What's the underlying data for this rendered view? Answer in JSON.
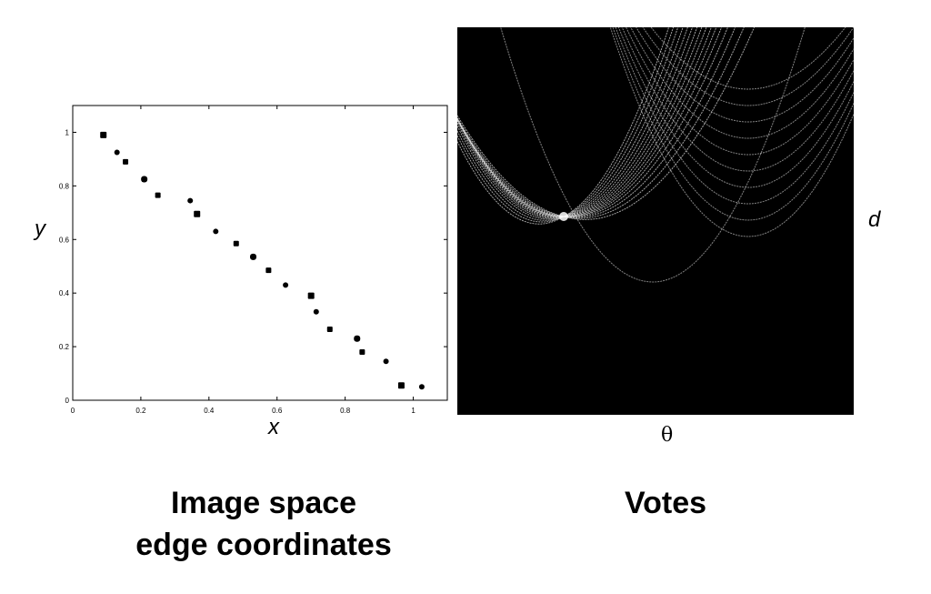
{
  "left_panel": {
    "chart_data": {
      "type": "scatter",
      "xlabel": "x",
      "ylabel": "y",
      "xlim": [
        0,
        1.1
      ],
      "ylim": [
        0,
        1.1
      ],
      "x_ticks": [
        "0",
        "0.2",
        "0.4",
        "0.6",
        "0.8",
        "1"
      ],
      "y_ticks": [
        "0",
        "0.2",
        "0.4",
        "0.6",
        "0.8",
        "1"
      ],
      "x_tick_values": [
        0,
        0.2,
        0.4,
        0.6,
        0.8,
        1.0
      ],
      "y_tick_values": [
        0,
        0.2,
        0.4,
        0.6,
        0.8,
        1.0
      ],
      "points": [
        {
          "x": 0.09,
          "y": 0.99
        },
        {
          "x": 0.13,
          "y": 0.925
        },
        {
          "x": 0.155,
          "y": 0.89
        },
        {
          "x": 0.21,
          "y": 0.825
        },
        {
          "x": 0.25,
          "y": 0.765
        },
        {
          "x": 0.345,
          "y": 0.745
        },
        {
          "x": 0.365,
          "y": 0.695
        },
        {
          "x": 0.42,
          "y": 0.63
        },
        {
          "x": 0.48,
          "y": 0.585
        },
        {
          "x": 0.53,
          "y": 0.535
        },
        {
          "x": 0.575,
          "y": 0.485
        },
        {
          "x": 0.625,
          "y": 0.43
        },
        {
          "x": 0.7,
          "y": 0.39
        },
        {
          "x": 0.715,
          "y": 0.33
        },
        {
          "x": 0.755,
          "y": 0.265
        },
        {
          "x": 0.835,
          "y": 0.23
        },
        {
          "x": 0.85,
          "y": 0.18
        },
        {
          "x": 0.92,
          "y": 0.145
        },
        {
          "x": 0.965,
          "y": 0.055
        },
        {
          "x": 1.025,
          "y": 0.05
        }
      ],
      "marker_color": "#000000"
    },
    "caption_line1": "Image space",
    "caption_line2": "edge coordinates"
  },
  "right_panel": {
    "xlabel": "θ",
    "ylabel": "d",
    "caption": "Votes",
    "background": "#000000",
    "curve_color": "#d8d8d8"
  }
}
